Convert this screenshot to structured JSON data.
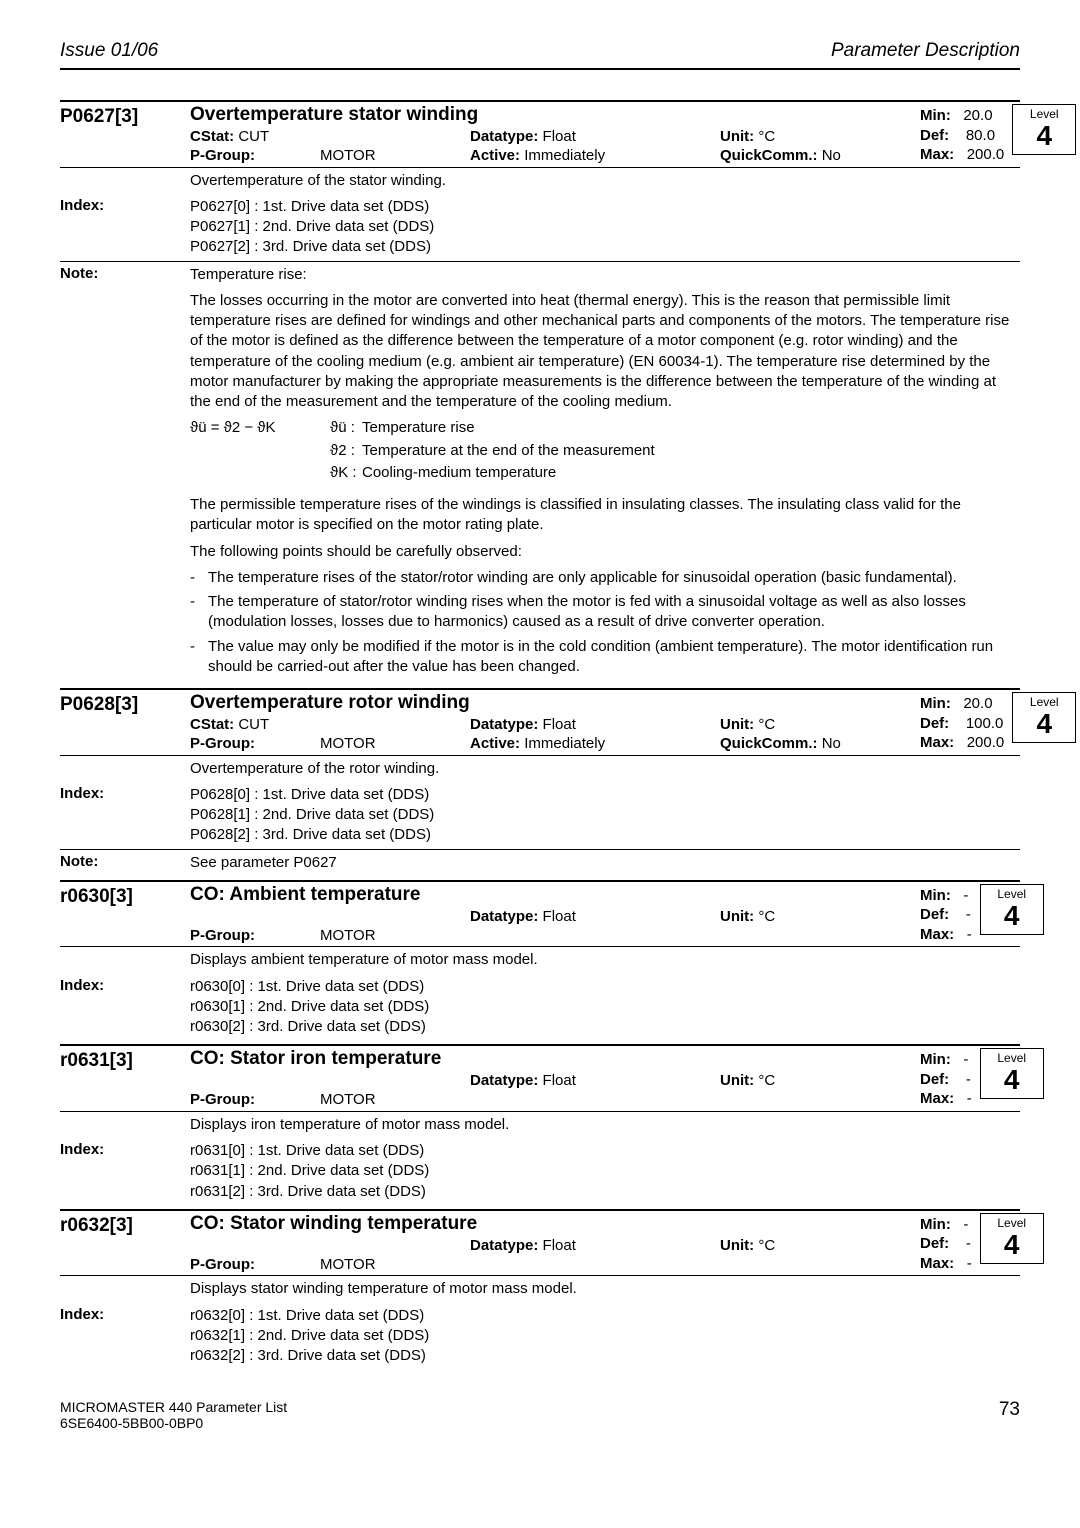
{
  "header": {
    "left": "Issue 01/06",
    "right": "Parameter Description"
  },
  "P0627": {
    "id": "P0627[3]",
    "title": "Overtemperature stator winding",
    "cstat_label": "CStat:",
    "cstat": "CUT",
    "pgroup_label": "P-Group:",
    "pgroup": "MOTOR",
    "dt_label": "Datatype:",
    "dt": "Float",
    "act_label": "Active:",
    "act": "Immediately",
    "unit_label": "Unit:",
    "unit": "°C",
    "qc_label": "QuickComm.:",
    "qc": "No",
    "min_label": "Min:",
    "min": "20.0",
    "def_label": "Def:",
    "def": "80.0",
    "max_label": "Max:",
    "max": "200.0",
    "level": "4",
    "desc": "Overtemperature of the stator winding.",
    "index_label": "Index:",
    "dds0": "P0627[0] :  1st. Drive data set (DDS)",
    "dds1": "P0627[1] :  2nd. Drive data set (DDS)",
    "dds2": "P0627[2] :  3rd. Drive data set (DDS)",
    "note_label": "Note:",
    "note_intro": "Temperature rise:",
    "note_body": "The losses occurring in the motor are converted into heat (thermal energy). This is the reason that permissible limit temperature rises are defined for windings and other mechanical parts and components of the motors. The temperature rise of the motor is defined as the difference between the temperature of a motor component (e.g. rotor winding) and the temperature of the cooling medium (e.g. ambient air temperature) (EN 60034-1). The temperature rise determined by the motor manufacturer by making the appropriate measurements is the difference between the temperature of the winding at the end of the measurement and the temperature of the cooling medium.",
    "formula_lhs": "ϑü = ϑ2 − ϑK",
    "fr1_sym": "ϑü :",
    "fr1": "Temperature rise",
    "fr2_sym": "ϑ2 :",
    "fr2": "Temperature at the end of the measurement",
    "fr3_sym": "ϑK :",
    "fr3": "Cooling-medium temperature",
    "note_para2": "The permissible temperature rises of the windings is classified in insulating classes. The insulating class valid for the particular motor is specified on the motor rating plate.",
    "note_para3": "The following points should be carefully observed:",
    "li1": "The temperature rises of the stator/rotor winding are only applicable for sinusoidal operation (basic fundamental).",
    "li2": "The temperature of stator/rotor winding rises when the motor is fed with a sinusoidal voltage as well as also losses (modulation losses, losses due to harmonics) caused as a result of drive converter operation.",
    "li3": "The value may only be modified if the motor is in the cold condition (ambient temperature). The motor identification run should be carried-out after the value has been changed."
  },
  "P0628": {
    "id": "P0628[3]",
    "title": "Overtemperature rotor winding",
    "cstat_label": "CStat:",
    "cstat": "CUT",
    "pgroup_label": "P-Group:",
    "pgroup": "MOTOR",
    "dt_label": "Datatype:",
    "dt": "Float",
    "act_label": "Active:",
    "act": "Immediately",
    "unit_label": "Unit:",
    "unit": "°C",
    "qc_label": "QuickComm.:",
    "qc": "No",
    "min_label": "Min:",
    "min": "20.0",
    "def_label": "Def:",
    "def": "100.0",
    "max_label": "Max:",
    "max": "200.0",
    "level": "4",
    "desc": "Overtemperature of the rotor winding.",
    "index_label": "Index:",
    "dds0": "P0628[0] :  1st. Drive data set (DDS)",
    "dds1": "P0628[1] :  2nd. Drive data set (DDS)",
    "dds2": "P0628[2] :  3rd. Drive data set (DDS)",
    "note_label": "Note:",
    "note_body": "See parameter P0627"
  },
  "r0630": {
    "id": "r0630[3]",
    "title": "CO: Ambient temperature",
    "pgroup_label": "P-Group:",
    "pgroup": "MOTOR",
    "dt_label": "Datatype:",
    "dt": "Float",
    "unit_label": "Unit:",
    "unit": "°C",
    "min_label": "Min:",
    "min": "-",
    "def_label": "Def:",
    "def": "-",
    "max_label": "Max:",
    "max": "-",
    "level": "4",
    "desc": "Displays ambient temperature of motor mass model.",
    "index_label": "Index:",
    "dds0": "r0630[0] :  1st. Drive data set (DDS)",
    "dds1": "r0630[1] :  2nd. Drive data set (DDS)",
    "dds2": "r0630[2] :  3rd. Drive data set (DDS)"
  },
  "r0631": {
    "id": "r0631[3]",
    "title": "CO: Stator iron temperature",
    "pgroup_label": "P-Group:",
    "pgroup": "MOTOR",
    "dt_label": "Datatype:",
    "dt": "Float",
    "unit_label": "Unit:",
    "unit": "°C",
    "min_label": "Min:",
    "min": "-",
    "def_label": "Def:",
    "def": "-",
    "max_label": "Max:",
    "max": "-",
    "level": "4",
    "desc": "Displays iron temperature of motor mass model.",
    "index_label": "Index:",
    "dds0": "r0631[0] :  1st. Drive data set (DDS)",
    "dds1": "r0631[1] :  2nd. Drive data set (DDS)",
    "dds2": "r0631[2] :  3rd. Drive data set (DDS)"
  },
  "r0632": {
    "id": "r0632[3]",
    "title": "CO: Stator winding temperature",
    "pgroup_label": "P-Group:",
    "pgroup": "MOTOR",
    "dt_label": "Datatype:",
    "dt": "Float",
    "unit_label": "Unit:",
    "unit": "°C",
    "min_label": "Min:",
    "min": "-",
    "def_label": "Def:",
    "def": "-",
    "max_label": "Max:",
    "max": "-",
    "level": "4",
    "desc": "Displays stator winding temperature of motor mass model.",
    "index_label": "Index:",
    "dds0": "r0632[0] :  1st. Drive data set (DDS)",
    "dds1": "r0632[1] :  2nd. Drive data set (DDS)",
    "dds2": "r0632[2] :  3rd. Drive data set (DDS)"
  },
  "footer": {
    "line1": "MICROMASTER 440    Parameter List",
    "line2": "6SE6400-5BB00-0BP0",
    "page": "73"
  },
  "labels": {
    "level": "Level"
  }
}
